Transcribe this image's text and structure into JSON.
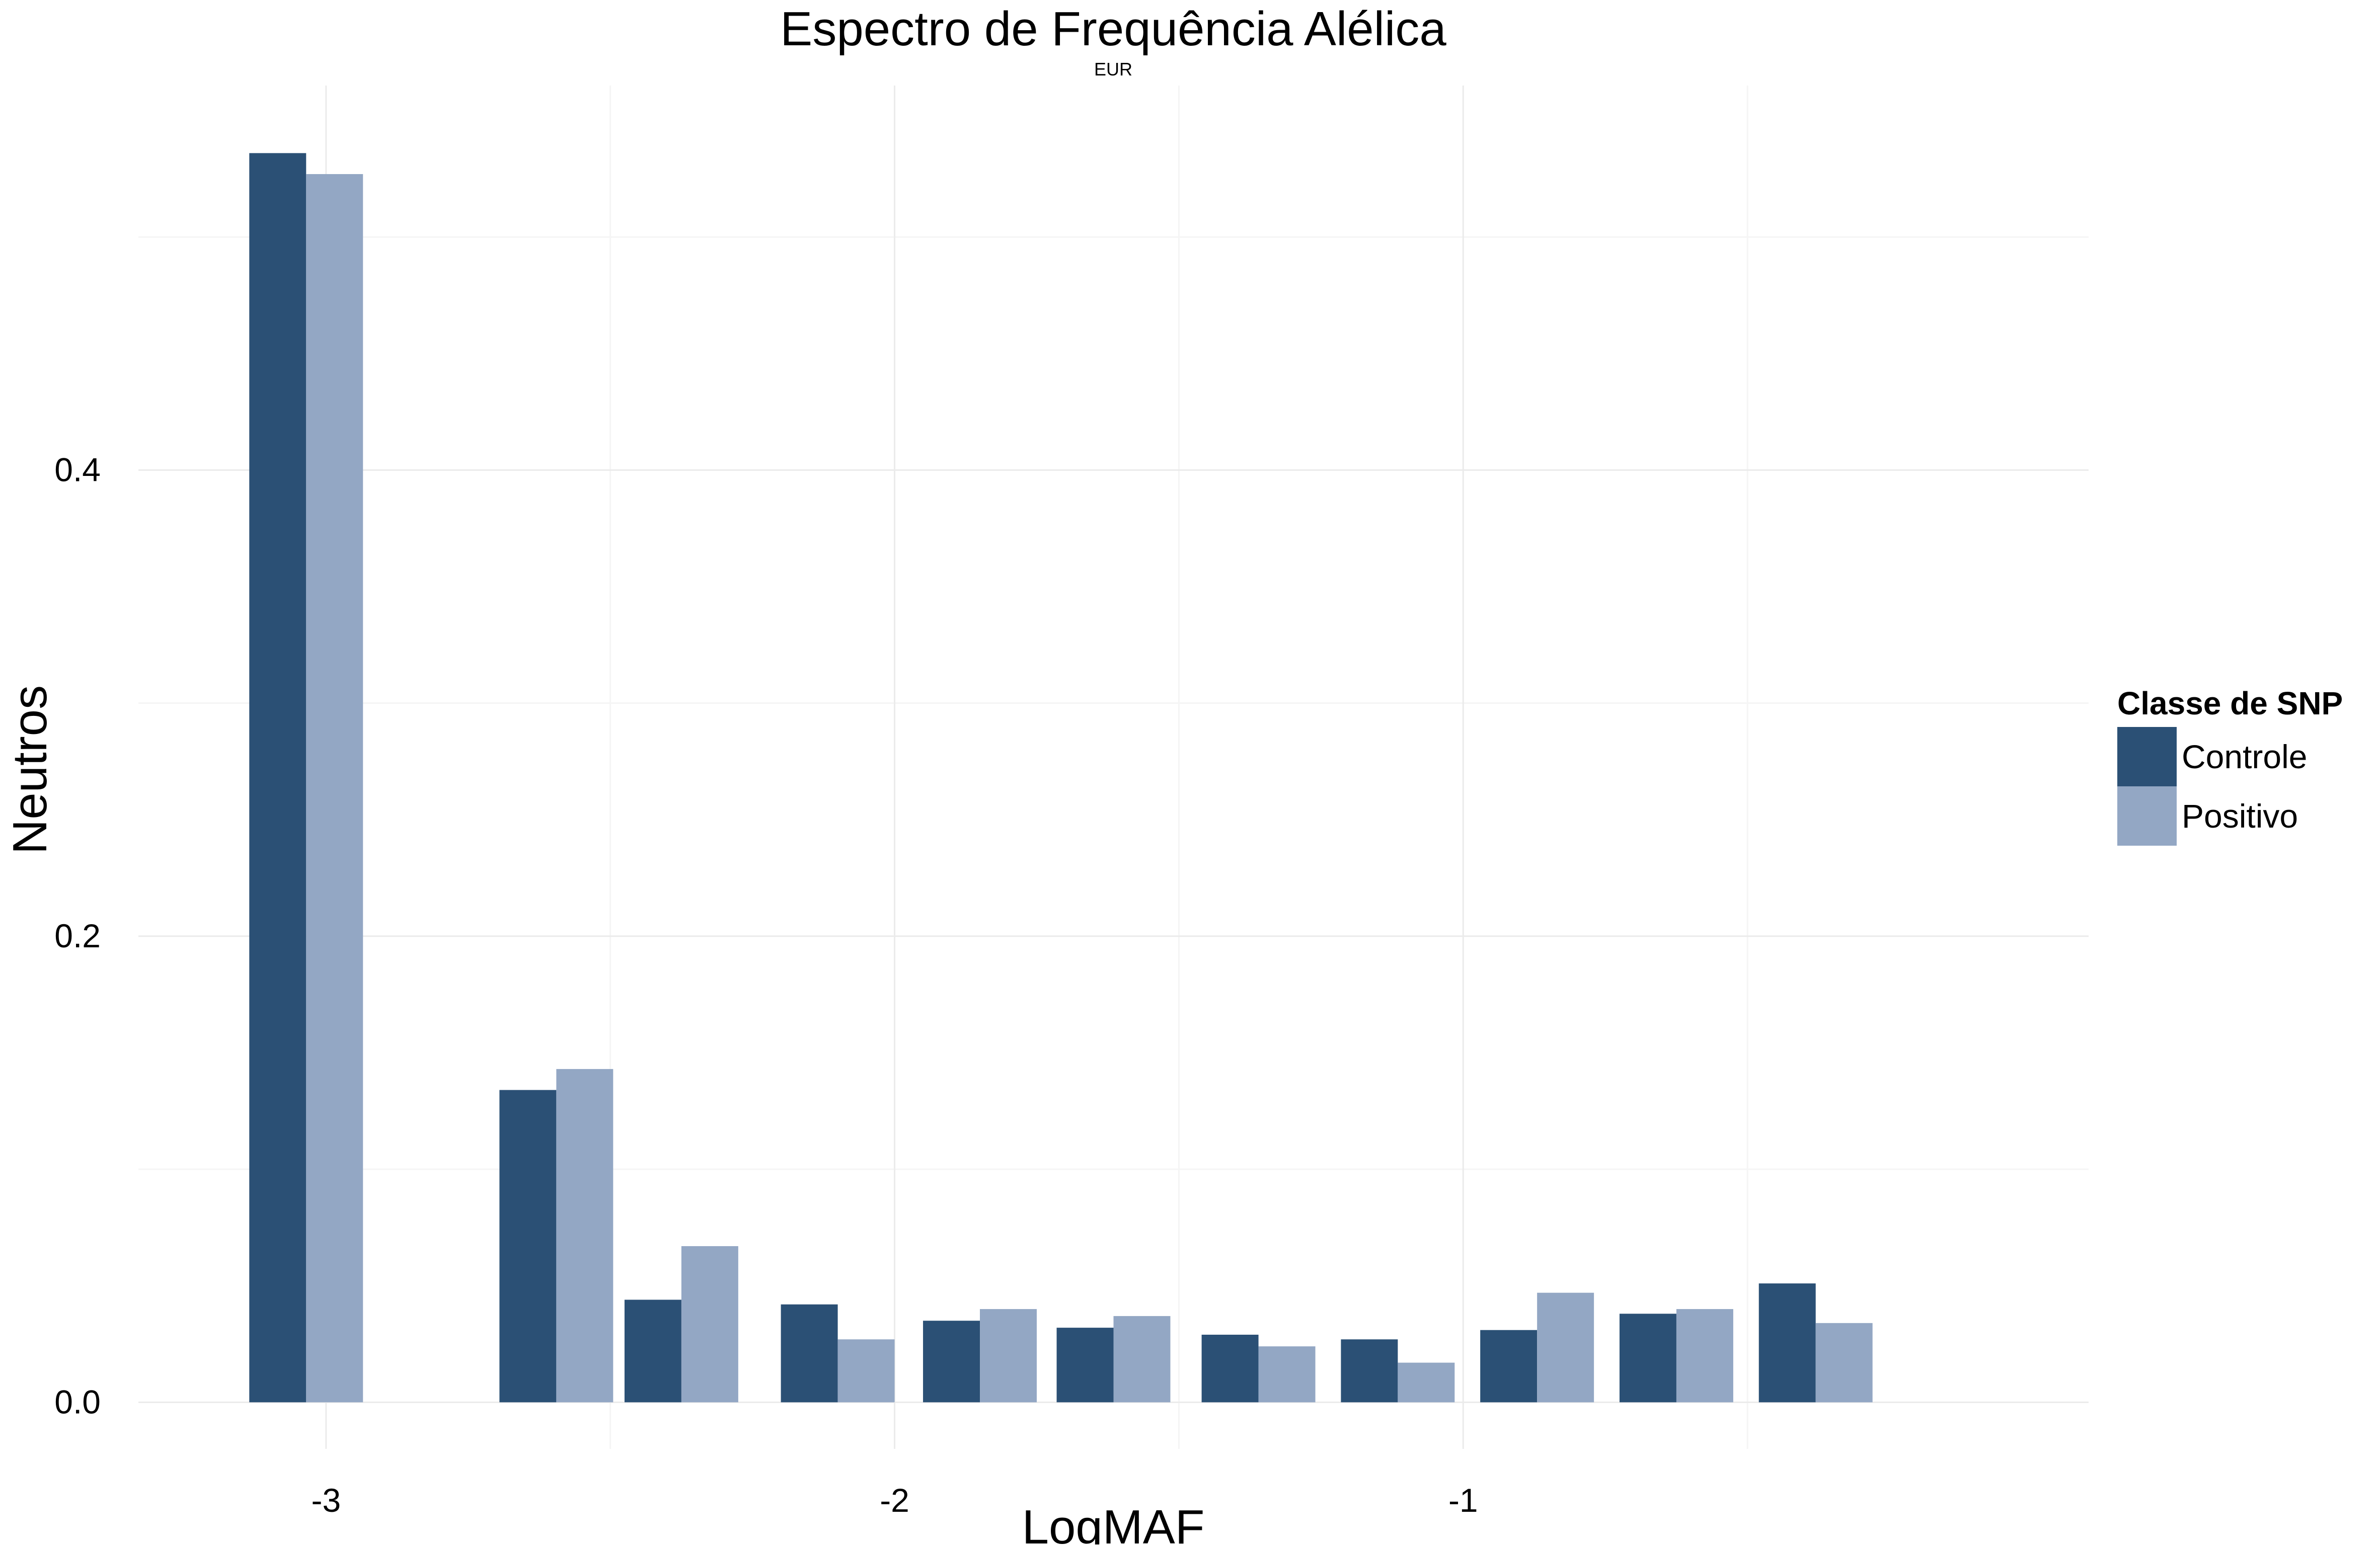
{
  "chart_data": {
    "type": "bar",
    "title": "Espectro de Frequência Alélica",
    "subtitle": "EUR",
    "xlabel": "LogMAF",
    "ylabel": "Neutros",
    "xlim": [
      -3.33,
      0.1
    ],
    "ylim": [
      -0.02,
      0.565
    ],
    "x_ticks": [
      -3,
      -2,
      -1
    ],
    "x_tick_labels": [
      "-3",
      "-2",
      "-1"
    ],
    "x_minor_ticks": [
      -2.5,
      -1.5,
      -0.5
    ],
    "y_ticks": [
      0.0,
      0.2,
      0.4
    ],
    "y_tick_labels": [
      "0.0",
      "0.2",
      "0.4"
    ],
    "y_minor_ticks": [
      0.1,
      0.3,
      0.5
    ],
    "grid": true,
    "bar_half_width": 0.1,
    "bin_centers": [
      -3.035,
      -2.595,
      -2.375,
      -2.1,
      -1.85,
      -1.615,
      -1.36,
      -1.115,
      -0.87,
      -0.625,
      -0.38
    ],
    "series": [
      {
        "name": "Controle",
        "color": "#2b5075",
        "values": [
          0.536,
          0.134,
          0.044,
          0.042,
          0.035,
          0.032,
          0.029,
          0.027,
          0.031,
          0.038,
          0.051
        ]
      },
      {
        "name": "Positivo",
        "color": "#93a7c4",
        "values": [
          0.527,
          0.143,
          0.067,
          0.027,
          0.04,
          0.037,
          0.024,
          0.017,
          0.047,
          0.04,
          0.034
        ]
      }
    ],
    "legend": {
      "title": "Classe de SNP",
      "position": "right"
    }
  }
}
